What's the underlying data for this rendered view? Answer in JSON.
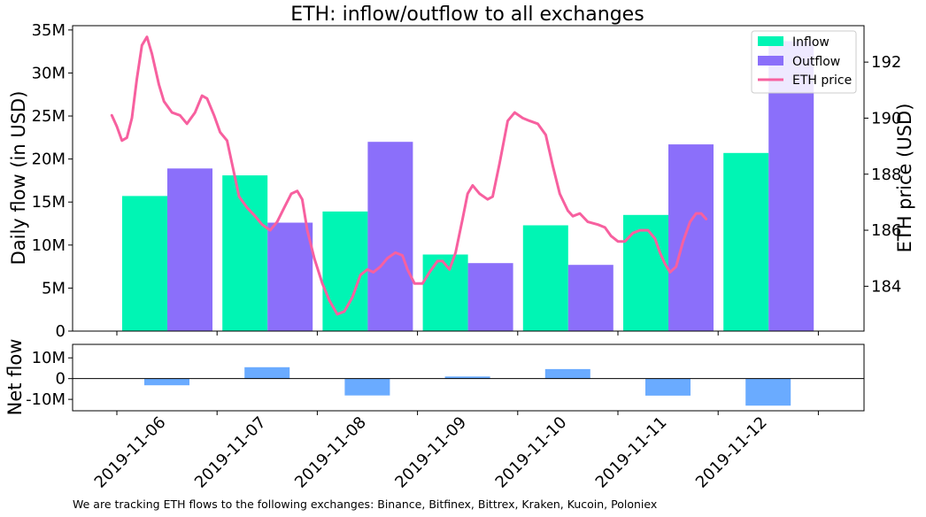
{
  "chart_data": {
    "type": "bar",
    "title": "ETH: inflow/outflow to all exchanges",
    "footnote": "We are tracking ETH flows to the following exchanges: Binance, Bitfinex, Bittrex, Kraken, Kucoin, Poloniex",
    "categories": [
      "2019-11-06",
      "2019-11-07",
      "2019-11-08",
      "2019-11-09",
      "2019-11-10",
      "2019-11-11",
      "2019-11-12"
    ],
    "main": {
      "ylabel": "Daily flow (in USD)",
      "ylim": [
        0,
        35500000
      ],
      "yticks": [
        {
          "value": 0,
          "label": "0"
        },
        {
          "value": 5000000,
          "label": "5M"
        },
        {
          "value": 10000000,
          "label": "10M"
        },
        {
          "value": 15000000,
          "label": "15M"
        },
        {
          "value": 20000000,
          "label": "20M"
        },
        {
          "value": 25000000,
          "label": "25M"
        },
        {
          "value": 30000000,
          "label": "30M"
        },
        {
          "value": 35000000,
          "label": "35M"
        }
      ],
      "series": [
        {
          "name": "Inflow",
          "color": "#00f5b4",
          "values": [
            15700000,
            18100000,
            13900000,
            8900000,
            12300000,
            13500000,
            20700000
          ]
        },
        {
          "name": "Outflow",
          "color": "#8b6ffa",
          "values": [
            18900000,
            12600000,
            22000000,
            7900000,
            7700000,
            21700000,
            33700000
          ]
        }
      ]
    },
    "price": {
      "name": "ETH price",
      "color": "#f7609f",
      "ylabel": "ETH price (USD)",
      "ylim": [
        182.4,
        193.3
      ],
      "yticks": [
        {
          "value": 184,
          "label": "184"
        },
        {
          "value": 186,
          "label": "186"
        },
        {
          "value": 188,
          "label": "188"
        },
        {
          "value": 190,
          "label": "190"
        },
        {
          "value": 192,
          "label": "192"
        }
      ],
      "points": [
        [
          -0.05,
          190.1
        ],
        [
          0.0,
          189.7
        ],
        [
          0.05,
          189.2
        ],
        [
          0.1,
          189.3
        ],
        [
          0.15,
          190.0
        ],
        [
          0.2,
          191.4
        ],
        [
          0.25,
          192.6
        ],
        [
          0.3,
          192.9
        ],
        [
          0.35,
          192.3
        ],
        [
          0.42,
          191.2
        ],
        [
          0.47,
          190.6
        ],
        [
          0.55,
          190.2
        ],
        [
          0.63,
          190.1
        ],
        [
          0.7,
          189.8
        ],
        [
          0.78,
          190.2
        ],
        [
          0.85,
          190.8
        ],
        [
          0.9,
          190.7
        ],
        [
          0.97,
          190.1
        ],
        [
          1.03,
          189.5
        ],
        [
          1.1,
          189.2
        ],
        [
          1.16,
          188.2
        ],
        [
          1.22,
          187.2
        ],
        [
          1.3,
          186.8
        ],
        [
          1.38,
          186.5
        ],
        [
          1.45,
          186.2
        ],
        [
          1.53,
          186.0
        ],
        [
          1.6,
          186.3
        ],
        [
          1.67,
          186.8
        ],
        [
          1.74,
          187.3
        ],
        [
          1.8,
          187.4
        ],
        [
          1.85,
          187.1
        ],
        [
          1.9,
          186.0
        ],
        [
          1.97,
          185.0
        ],
        [
          2.05,
          184.1
        ],
        [
          2.12,
          183.5
        ],
        [
          2.2,
          183.0
        ],
        [
          2.27,
          183.1
        ],
        [
          2.35,
          183.6
        ],
        [
          2.43,
          184.4
        ],
        [
          2.5,
          184.6
        ],
        [
          2.56,
          184.5
        ],
        [
          2.63,
          184.7
        ],
        [
          2.7,
          185.0
        ],
        [
          2.78,
          185.2
        ],
        [
          2.85,
          185.1
        ],
        [
          2.9,
          184.6
        ],
        [
          2.97,
          184.1
        ],
        [
          3.05,
          184.1
        ],
        [
          3.12,
          184.5
        ],
        [
          3.2,
          184.9
        ],
        [
          3.25,
          184.9
        ],
        [
          3.32,
          184.6
        ],
        [
          3.38,
          185.2
        ],
        [
          3.45,
          186.4
        ],
        [
          3.5,
          187.3
        ],
        [
          3.55,
          187.6
        ],
        [
          3.62,
          187.3
        ],
        [
          3.7,
          187.1
        ],
        [
          3.75,
          187.2
        ],
        [
          3.82,
          188.4
        ],
        [
          3.9,
          189.9
        ],
        [
          3.97,
          190.2
        ],
        [
          4.05,
          190.0
        ],
        [
          4.12,
          189.9
        ],
        [
          4.2,
          189.8
        ],
        [
          4.28,
          189.4
        ],
        [
          4.35,
          188.3
        ],
        [
          4.42,
          187.3
        ],
        [
          4.5,
          186.7
        ],
        [
          4.55,
          186.5
        ],
        [
          4.62,
          186.6
        ],
        [
          4.7,
          186.3
        ],
        [
          4.8,
          186.2
        ],
        [
          4.87,
          186.1
        ],
        [
          4.93,
          185.8
        ],
        [
          5.0,
          185.6
        ],
        [
          5.07,
          185.6
        ],
        [
          5.15,
          185.9
        ],
        [
          5.22,
          186.0
        ],
        [
          5.3,
          186.0
        ],
        [
          5.37,
          185.7
        ],
        [
          5.42,
          185.2
        ],
        [
          5.47,
          184.8
        ],
        [
          5.52,
          184.5
        ],
        [
          5.58,
          184.7
        ],
        [
          5.65,
          185.6
        ],
        [
          5.72,
          186.3
        ],
        [
          5.78,
          186.6
        ],
        [
          5.83,
          186.6
        ],
        [
          5.88,
          186.4
        ]
      ]
    },
    "net": {
      "ylabel": "Net flow",
      "color": "#6aabff",
      "ylim": [
        -15500000,
        16500000
      ],
      "yticks": [
        {
          "value": -10000000,
          "label": "-10M"
        },
        {
          "value": 0,
          "label": "0"
        },
        {
          "value": 10000000,
          "label": "10M"
        }
      ],
      "values": [
        -3200000,
        5500000,
        -8100000,
        1000000,
        4600000,
        -8200000,
        -13000000
      ]
    },
    "legend": {
      "placement": "upper right"
    }
  }
}
